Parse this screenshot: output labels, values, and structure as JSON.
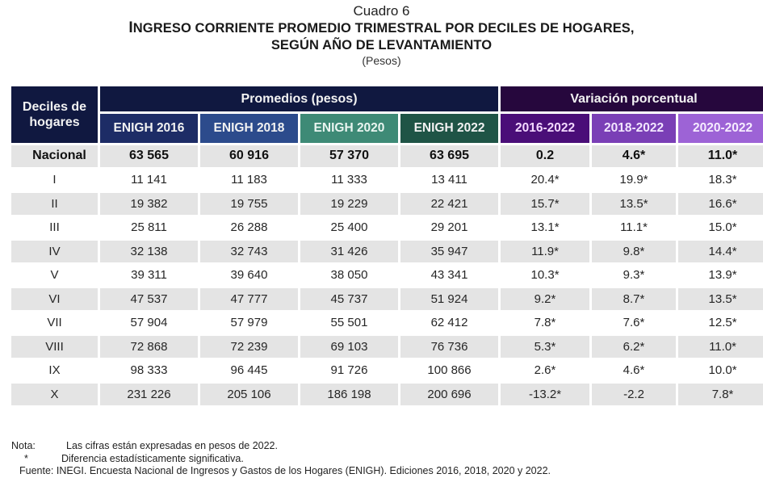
{
  "titles": {
    "cuadro": "Cuadro 6",
    "main_line1_initial": "I",
    "main_line1_rest": "NGRESO CORRIENTE PROMEDIO TRIMESTRAL POR DECILES DE HOGARES,",
    "main_line2": "SEGÚN AÑO DE  LEVANTAMIENTO",
    "units": "(Pesos)"
  },
  "header": {
    "decil_col": "Deciles de hogares",
    "promedios_group": "Promedios (pesos)",
    "variacion_group": "Variación porcentual",
    "promedios_cols": [
      "ENIGH 2016",
      "ENIGH 2018",
      "ENIGH 2020",
      "ENIGH 2022"
    ],
    "variacion_cols": [
      "2016-2022",
      "2018-2022",
      "2020-2022"
    ]
  },
  "colors": {
    "header_navy": "#101840",
    "enigh_2016": "#1d2c66",
    "enigh_2018": "#2c4b8c",
    "enigh_2020": "#3e8a76",
    "enigh_2022": "#1f5446",
    "variacion_group": "#26073d",
    "var_2016_2022": "#4a0e78",
    "var_2018_2022": "#7a3fb6",
    "var_2020_2022": "#9d63d6",
    "row_shade": "#e4e4e4"
  },
  "rows": [
    {
      "decil": "Nacional",
      "v": [
        "63 565",
        "60 916",
        "57 370",
        "63 695",
        "0.2",
        "4.6*",
        "11.0*"
      ]
    },
    {
      "decil": "I",
      "v": [
        "11 141",
        "11 183",
        "11 333",
        "13 411",
        "20.4*",
        "19.9*",
        "18.3*"
      ]
    },
    {
      "decil": "II",
      "v": [
        "19 382",
        "19 755",
        "19 229",
        "22 421",
        "15.7*",
        "13.5*",
        "16.6*"
      ]
    },
    {
      "decil": "III",
      "v": [
        "25 811",
        "26 288",
        "25 400",
        "29 201",
        "13.1*",
        "11.1*",
        "15.0*"
      ]
    },
    {
      "decil": "IV",
      "v": [
        "32 138",
        "32 743",
        "31 426",
        "35 947",
        "11.9*",
        "9.8*",
        "14.4*"
      ]
    },
    {
      "decil": "V",
      "v": [
        "39 311",
        "39 640",
        "38 050",
        "43 341",
        "10.3*",
        "9.3*",
        "13.9*"
      ]
    },
    {
      "decil": "VI",
      "v": [
        "47 537",
        "47 777",
        "45 737",
        "51 924",
        "9.2*",
        "8.7*",
        "13.5*"
      ]
    },
    {
      "decil": "VII",
      "v": [
        "57 904",
        "57 979",
        "55 501",
        "62 412",
        "7.8*",
        "7.6*",
        "12.5*"
      ]
    },
    {
      "decil": "VIII",
      "v": [
        "72 868",
        "72 239",
        "69 103",
        "76 736",
        "5.3*",
        "6.2*",
        "11.0*"
      ]
    },
    {
      "decil": "IX",
      "v": [
        "98 333",
        "96 445",
        "91 726",
        "100 866",
        "2.6*",
        "4.6*",
        "10.0*"
      ]
    },
    {
      "decil": "X",
      "v": [
        "231 226",
        "205 106",
        "186 198",
        "200 696",
        "-13.2*",
        "-2.2",
        "7.8*"
      ]
    }
  ],
  "notes": {
    "nota_label": "Nota:",
    "nota_text": "Las cifras están expresadas en pesos de 2022.",
    "asterisk": "*",
    "asterisk_text": "Diferencia estadísticamente significativa.",
    "fuente": "Fuente: INEGI. Encuesta Nacional de Ingresos y Gastos de los Hogares (ENIGH). Ediciones 2016, 2018, 2020 y 2022."
  }
}
